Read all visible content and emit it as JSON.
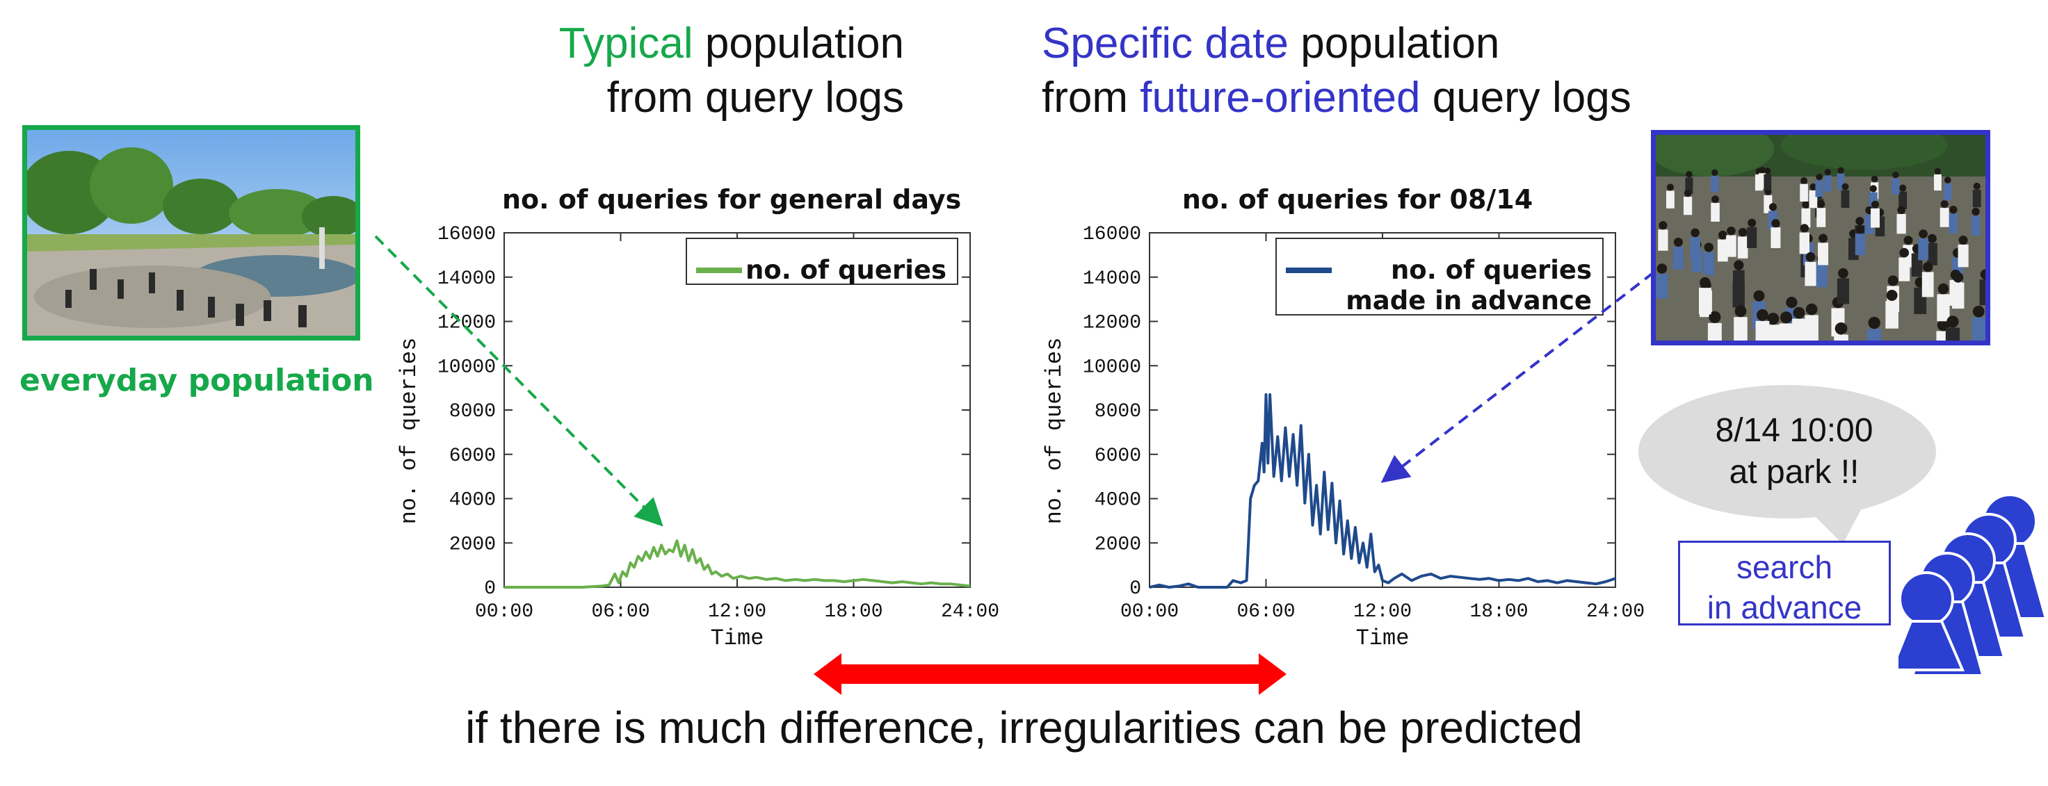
{
  "headings": {
    "left": {
      "highlight": "Typical",
      "rest": " population",
      "line2": "from query logs"
    },
    "right": {
      "highlight": "Specific date",
      "rest": " population",
      "line2_pre": "from ",
      "line2_highlight": "future-oriented",
      "line2_post": " query logs"
    }
  },
  "left_photo": {
    "caption": "everyday population",
    "border_color": "#16a84a"
  },
  "right_photo": {
    "border_color": "#3434c8"
  },
  "bubble": {
    "line1": "8/14 10:00",
    "line2": "at park !!"
  },
  "search_box": {
    "line1": "search",
    "line2": "in advance"
  },
  "bottom_text": "if there is much difference, irregularities can be predicted",
  "colors": {
    "green": "#16a84a",
    "blue": "#3434c8",
    "arrow_red": "#ff0000",
    "series_green": "#6ab04c",
    "series_blue": "#1f4a8c"
  },
  "chart_data": [
    {
      "type": "line",
      "title": "no. of queries for general days",
      "xlabel": "Time",
      "ylabel": "no. of queries",
      "x_ticks": [
        "00:00",
        "06:00",
        "12:00",
        "18:00",
        "24:00"
      ],
      "y_ticks": [
        "0",
        "2000",
        "4000",
        "6000",
        "8000",
        "10000",
        "12000",
        "14000",
        "16000"
      ],
      "ylim": [
        0,
        16000
      ],
      "xlim_hours": [
        0,
        24
      ],
      "legend": {
        "entries": [
          "no. of queries"
        ],
        "position": "top-right"
      },
      "series": [
        {
          "name": "no. of queries",
          "color": "#6ab04c",
          "x_hours": [
            0,
            1,
            2,
            3,
            4,
            5,
            5.4,
            5.7,
            5.9,
            6.1,
            6.3,
            6.5,
            6.7,
            6.9,
            7.1,
            7.3,
            7.5,
            7.7,
            7.9,
            8.1,
            8.3,
            8.5,
            8.7,
            8.9,
            9.1,
            9.3,
            9.5,
            9.7,
            9.9,
            10.1,
            10.3,
            10.5,
            10.7,
            10.9,
            11.2,
            11.5,
            11.8,
            12.2,
            12.6,
            13,
            13.5,
            14,
            14.5,
            15,
            15.5,
            16,
            16.5,
            17,
            17.5,
            18,
            18.5,
            19,
            19.5,
            20,
            20.5,
            21,
            21.5,
            22,
            22.5,
            23,
            23.5,
            24
          ],
          "values": [
            0,
            0,
            0,
            0,
            0,
            50,
            100,
            600,
            200,
            700,
            500,
            1100,
            900,
            1400,
            1200,
            1600,
            1300,
            1800,
            1400,
            1900,
            1500,
            1700,
            1600,
            2100,
            1400,
            1900,
            1200,
            1700,
            1100,
            1300,
            800,
            1000,
            600,
            700,
            500,
            600,
            400,
            500,
            400,
            450,
            350,
            400,
            300,
            350,
            300,
            350,
            300,
            300,
            250,
            300,
            350,
            300,
            250,
            200,
            250,
            200,
            150,
            200,
            150,
            150,
            100,
            50
          ]
        }
      ]
    },
    {
      "type": "line",
      "title": "no. of queries for 08/14",
      "xlabel": "Time",
      "ylabel": "no. of queries",
      "x_ticks": [
        "00:00",
        "06:00",
        "12:00",
        "18:00",
        "24:00"
      ],
      "y_ticks": [
        "0",
        "2000",
        "4000",
        "6000",
        "8000",
        "10000",
        "12000",
        "14000",
        "16000"
      ],
      "ylim": [
        0,
        16000
      ],
      "xlim_hours": [
        0,
        24
      ],
      "legend": {
        "entries": [
          "no. of queries",
          "made in advance"
        ],
        "position": "top-right"
      },
      "series": [
        {
          "name": "no. of queries made in advance",
          "color": "#1f4a8c",
          "x_hours": [
            0,
            0.5,
            1,
            1.5,
            2,
            2.5,
            3,
            3.5,
            4,
            4.3,
            4.7,
            5,
            5.2,
            5.4,
            5.6,
            5.8,
            5.9,
            6.0,
            6.1,
            6.2,
            6.4,
            6.6,
            6.8,
            7.0,
            7.2,
            7.4,
            7.6,
            7.8,
            8.0,
            8.2,
            8.4,
            8.6,
            8.8,
            9.0,
            9.2,
            9.4,
            9.6,
            9.8,
            10.0,
            10.2,
            10.4,
            10.6,
            10.8,
            11.0,
            11.2,
            11.4,
            11.6,
            11.8,
            12.0,
            12.3,
            12.6,
            13,
            13.5,
            14,
            14.5,
            15,
            15.5,
            16,
            16.5,
            17,
            17.5,
            18,
            18.5,
            19,
            19.5,
            20,
            20.5,
            21,
            21.5,
            22,
            22.5,
            23,
            23.5,
            24
          ],
          "values": [
            0,
            100,
            0,
            50,
            150,
            0,
            0,
            0,
            0,
            300,
            200,
            300,
            4000,
            4600,
            4800,
            6500,
            5200,
            8700,
            5600,
            8700,
            5000,
            6800,
            4800,
            7200,
            5000,
            6900,
            4600,
            7300,
            3800,
            6000,
            2800,
            4600,
            2400,
            5200,
            2600,
            4700,
            2000,
            3900,
            1500,
            3000,
            1300,
            2700,
            1100,
            2000,
            900,
            2400,
            700,
            1000,
            300,
            200,
            400,
            600,
            300,
            500,
            600,
            400,
            500,
            450,
            400,
            350,
            400,
            300,
            350,
            300,
            400,
            250,
            300,
            200,
            300,
            250,
            200,
            150,
            250,
            400
          ]
        }
      ]
    }
  ]
}
